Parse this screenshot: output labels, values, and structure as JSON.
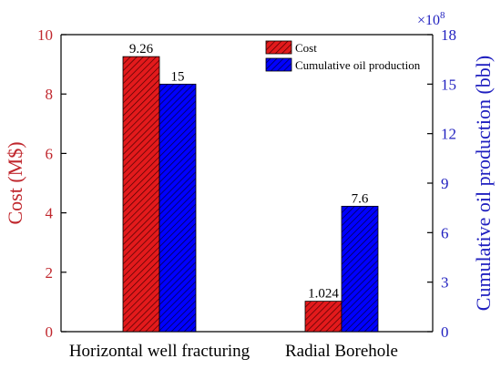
{
  "chart_data": {
    "type": "bar",
    "categories": [
      "Horizontal well fracturing",
      "Radial Borehole"
    ],
    "series": [
      {
        "name": "Cost",
        "axis": "left",
        "values": [
          9.26,
          1.024
        ],
        "labels": [
          "9.26",
          "1.024"
        ],
        "color": "#e31a1c",
        "hatch": "diagonal"
      },
      {
        "name": "Cumulative oil production",
        "axis": "right",
        "values": [
          15,
          7.6
        ],
        "labels": [
          "15",
          "7.6"
        ],
        "color": "#0000ff",
        "hatch": "diagonal"
      }
    ],
    "left_axis": {
      "label": "Cost (M$)",
      "range": [
        0,
        10
      ],
      "ticks": [
        0,
        2,
        4,
        6,
        8,
        10
      ],
      "color": "#c0272d"
    },
    "right_axis": {
      "label": "Cumulative oil production (bbl)",
      "multiplier": "×10",
      "multiplier_exp": "8",
      "range": [
        0,
        18
      ],
      "ticks": [
        0,
        3,
        6,
        9,
        12,
        15,
        18
      ],
      "color": "#1f1fbf"
    },
    "legend": {
      "position": "top-right"
    },
    "grid": false
  }
}
